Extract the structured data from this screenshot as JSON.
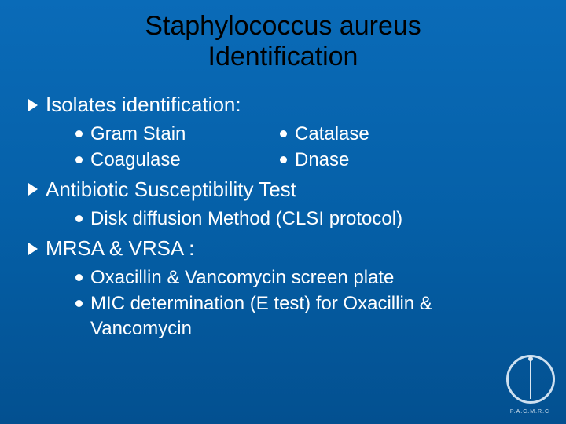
{
  "title_line1": "Staphylococcus aureus",
  "title_line2": "Identification",
  "sections": [
    {
      "heading": "Isolates identification:",
      "left": [
        "Gram Stain",
        "Coagulase"
      ],
      "right": [
        "Catalase",
        "Dnase"
      ]
    },
    {
      "heading": "Antibiotic Susceptibility Test",
      "items": [
        "Disk diffusion Method (CLSI protocol)"
      ]
    },
    {
      "heading": "MRSA & VRSA :",
      "items": [
        "Oxacillin & Vancomycin screen plate",
        "MIC determination (E test) for Oxacillin & Vancomycin"
      ]
    }
  ],
  "logo_text": "P.A.C.M.R.C",
  "colors": {
    "bg_top": "#0a6bb8",
    "bg_bottom": "#035090",
    "title_color": "#000000",
    "body_color": "#ffffff"
  },
  "fonts": {
    "title_size_pt": 26,
    "heading_size_pt": 20,
    "bullet_size_pt": 18
  }
}
